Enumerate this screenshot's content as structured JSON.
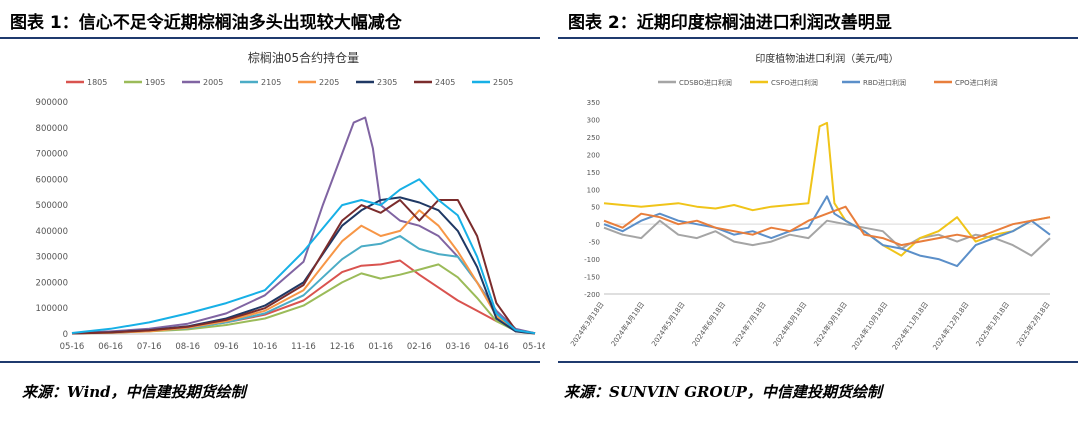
{
  "figure1": {
    "title": "图表 1：信心不足令近期棕榈油多头出现较大幅减仓",
    "source": "来源：Wind，中信建投期货绘制",
    "chart_data": {
      "type": "line",
      "title": "棕榈油05合约持仓量",
      "ylim": [
        0,
        900000
      ],
      "yticks": [
        "0",
        "100000",
        "200000",
        "300000",
        "400000",
        "500000",
        "600000",
        "700000",
        "800000",
        "900000"
      ],
      "categories": [
        "05-16",
        "06-16",
        "07-16",
        "08-16",
        "09-16",
        "10-16",
        "11-16",
        "12-16",
        "01-16",
        "02-16",
        "03-16",
        "04-16",
        "05-16"
      ],
      "legend_position": "top",
      "series": [
        {
          "name": "1805",
          "color": "#d9534f",
          "x": [
            0,
            1,
            2,
            3,
            4,
            5,
            6,
            7,
            7.5,
            8,
            8.5,
            9,
            9.5,
            10,
            10.5,
            11,
            11.5,
            12
          ],
          "values": [
            2000,
            8000,
            15000,
            25000,
            45000,
            75000,
            130000,
            240000,
            265000,
            270000,
            285000,
            230000,
            180000,
            130000,
            90000,
            50000,
            15000,
            3000
          ]
        },
        {
          "name": "1905",
          "color": "#9bbb59",
          "x": [
            0,
            1,
            2,
            3,
            4,
            5,
            6,
            7,
            7.5,
            8,
            8.5,
            9,
            9.5,
            10,
            10.5,
            11,
            11.5,
            12
          ],
          "values": [
            2000,
            5000,
            10000,
            18000,
            35000,
            60000,
            110000,
            200000,
            235000,
            215000,
            230000,
            250000,
            270000,
            220000,
            140000,
            50000,
            12000,
            2000
          ]
        },
        {
          "name": "2005",
          "color": "#8064a2",
          "x": [
            0,
            1,
            2,
            3,
            4,
            5,
            6,
            6.5,
            7,
            7.3,
            7.6,
            7.8,
            8,
            8.5,
            9,
            9.5,
            10,
            10.5,
            11,
            11.5,
            12
          ],
          "values": [
            3000,
            10000,
            20000,
            40000,
            80000,
            150000,
            280000,
            500000,
            700000,
            820000,
            840000,
            720000,
            500000,
            440000,
            420000,
            380000,
            300000,
            200000,
            90000,
            20000,
            3000
          ]
        },
        {
          "name": "2105",
          "color": "#4bacc6",
          "x": [
            0,
            1,
            2,
            3,
            4,
            5,
            6,
            7,
            7.5,
            8,
            8.5,
            9,
            9.5,
            10,
            10.5,
            11,
            11.5,
            12
          ],
          "values": [
            2000,
            6000,
            12000,
            22000,
            45000,
            80000,
            150000,
            290000,
            340000,
            350000,
            380000,
            330000,
            310000,
            300000,
            200000,
            80000,
            15000,
            2000
          ]
        },
        {
          "name": "2205",
          "color": "#f79646",
          "x": [
            0,
            1,
            2,
            3,
            4,
            5,
            6,
            7,
            7.5,
            8,
            8.5,
            9,
            9.5,
            10,
            10.5,
            11,
            11.5,
            12
          ],
          "values": [
            2000,
            5000,
            10000,
            25000,
            50000,
            90000,
            170000,
            360000,
            420000,
            380000,
            400000,
            480000,
            420000,
            320000,
            200000,
            70000,
            10000,
            2000
          ]
        },
        {
          "name": "2305",
          "color": "#1f3864",
          "x": [
            0,
            1,
            2,
            3,
            4,
            5,
            6,
            7,
            7.5,
            8,
            8.5,
            9,
            9.5,
            10,
            10.5,
            11,
            11.5,
            12
          ],
          "values": [
            2000,
            7000,
            15000,
            30000,
            60000,
            110000,
            200000,
            420000,
            480000,
            520000,
            530000,
            510000,
            480000,
            400000,
            260000,
            60000,
            10000,
            2000
          ]
        },
        {
          "name": "2405",
          "color": "#7b2c2c",
          "x": [
            0,
            1,
            2,
            3,
            4,
            5,
            6,
            7,
            7.5,
            8,
            8.5,
            9,
            9.5,
            10,
            10.5,
            11,
            11.5,
            12
          ],
          "values": [
            2000,
            6000,
            14000,
            28000,
            55000,
            100000,
            190000,
            440000,
            500000,
            470000,
            520000,
            440000,
            520000,
            520000,
            380000,
            120000,
            15000,
            3000
          ]
        },
        {
          "name": "2505",
          "color": "#17b0e6",
          "x": [
            0,
            1,
            2,
            3,
            4,
            5,
            6,
            7,
            7.5,
            8,
            8.5,
            9,
            9.5,
            10,
            10.5,
            11,
            11.5,
            12
          ],
          "values": [
            4000,
            20000,
            45000,
            80000,
            120000,
            170000,
            320000,
            500000,
            520000,
            500000,
            560000,
            600000,
            520000,
            460000,
            300000,
            80000,
            15000,
            3000
          ]
        }
      ]
    }
  },
  "figure2": {
    "title": "图表 2：近期印度棕榈油进口利润改善明显",
    "source": "来源：SUNVIN GROUP，中信建投期货绘制",
    "chart_data": {
      "type": "line",
      "title": "印度植物油进口利润（美元/吨）",
      "ylim": [
        -200,
        350
      ],
      "yticks": [
        "-200",
        "-150",
        "-100",
        "-50",
        "0",
        "50",
        "100",
        "150",
        "200",
        "250",
        "300",
        "350"
      ],
      "categories": [
        "2024年3月18日",
        "2024年4月18日",
        "2024年5月18日",
        "2024年6月18日",
        "2024年7月18日",
        "2024年8月18日",
        "2024年9月18日",
        "2024年10月18日",
        "2024年11月18日",
        "2024年12月18日",
        "2025年1月18日",
        "2025年2月18日"
      ],
      "legend_position": "top",
      "series": [
        {
          "name": "CDSBO进口利润",
          "color": "#a5a5a5",
          "x": [
            0,
            0.5,
            1,
            1.5,
            2,
            2.5,
            3,
            3.5,
            4,
            4.5,
            5,
            5.5,
            6,
            6.5,
            7,
            7.5,
            8,
            8.5,
            9,
            9.5,
            10,
            10.5,
            11,
            11.5,
            12
          ],
          "values": [
            -10,
            -30,
            -40,
            10,
            -30,
            -40,
            -20,
            -50,
            -60,
            -50,
            -30,
            -40,
            10,
            0,
            -10,
            -20,
            -70,
            -40,
            -30,
            -50,
            -30,
            -40,
            -60,
            -90,
            -40
          ]
        },
        {
          "name": "CSFO进口利润",
          "color": "#f0c419",
          "x": [
            0,
            0.5,
            1,
            1.5,
            2,
            2.5,
            3,
            3.5,
            4,
            4.5,
            5,
            5.5,
            5.8,
            6,
            6.2,
            6.5,
            7,
            7.5,
            8,
            8.5,
            9,
            9.5,
            10,
            10.5,
            11,
            11.5,
            12
          ],
          "values": [
            60,
            55,
            50,
            55,
            60,
            50,
            45,
            55,
            40,
            50,
            55,
            60,
            280,
            290,
            60,
            10,
            -20,
            -60,
            -90,
            -40,
            -20,
            20,
            -50,
            -30,
            -20,
            10,
            20
          ]
        },
        {
          "name": "RBD进口利润",
          "color": "#5b8fc9",
          "x": [
            0,
            0.5,
            1,
            1.5,
            2,
            2.5,
            3,
            3.5,
            4,
            4.5,
            5,
            5.5,
            6,
            6.2,
            6.5,
            7,
            7.5,
            8,
            8.5,
            9,
            9.5,
            10,
            10.5,
            11,
            11.5,
            12
          ],
          "values": [
            0,
            -20,
            10,
            30,
            10,
            0,
            -10,
            -30,
            -20,
            -40,
            -20,
            -10,
            80,
            30,
            10,
            -20,
            -60,
            -70,
            -90,
            -100,
            -120,
            -60,
            -40,
            -20,
            10,
            -30
          ]
        },
        {
          "name": "CPO进口利润",
          "color": "#e87e3c",
          "x": [
            0,
            0.5,
            1,
            1.5,
            2,
            2.5,
            3,
            3.5,
            4,
            4.5,
            5,
            5.5,
            6,
            6.5,
            7,
            7.5,
            8,
            8.5,
            9,
            9.5,
            10,
            10.5,
            11,
            11.5,
            12
          ],
          "values": [
            10,
            -10,
            30,
            20,
            0,
            10,
            -10,
            -20,
            -30,
            -10,
            -20,
            10,
            30,
            50,
            -30,
            -40,
            -60,
            -50,
            -40,
            -30,
            -40,
            -20,
            0,
            10,
            20
          ]
        }
      ]
    }
  }
}
